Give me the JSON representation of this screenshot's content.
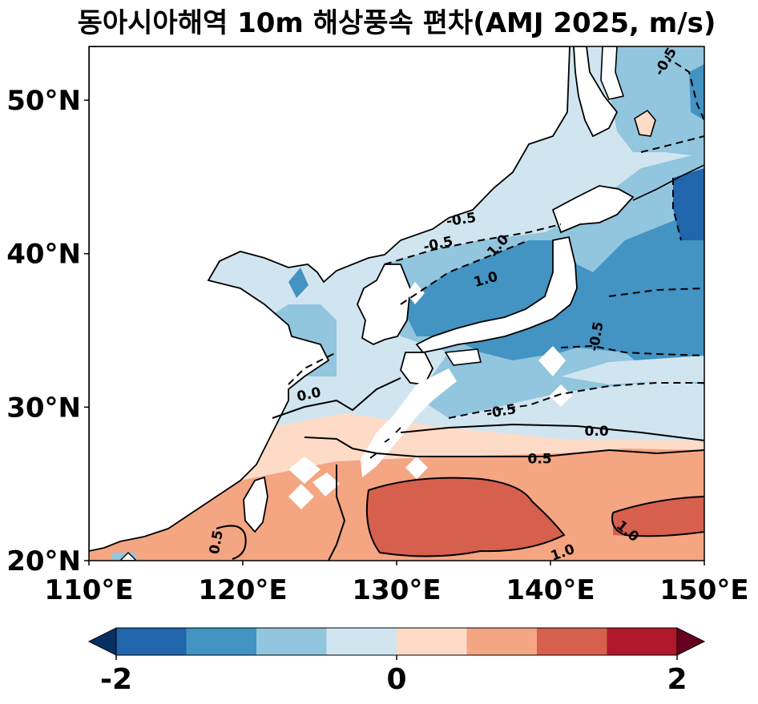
{
  "title": "동아시아해역 10m 해상풍속 편차(AMJ 2025, m/s)",
  "map": {
    "lon_range": [
      110,
      150
    ],
    "lat_range": [
      20,
      53.5
    ],
    "x_ticks": [
      110,
      120,
      130,
      140,
      150
    ],
    "x_tick_labels": [
      "110°E",
      "120°E",
      "130°E",
      "140°E",
      "150°E"
    ],
    "y_ticks": [
      20,
      30,
      40,
      50
    ],
    "y_tick_labels": [
      "20°N",
      "30°N",
      "40°N",
      "50°N"
    ],
    "contour_labels": [
      {
        "text": "-0.5",
        "lon": 147.5,
        "lat": 52.5,
        "angle": -60
      },
      {
        "text": "-0.5",
        "lon": 134.2,
        "lat": 42.2,
        "angle": -8
      },
      {
        "text": "-0.5",
        "lon": 132.7,
        "lat": 40.6,
        "angle": -12
      },
      {
        "text": "1.0",
        "lon": 136.6,
        "lat": 40.5,
        "angle": -48
      },
      {
        "text": "1.0",
        "lon": 135.8,
        "lat": 38.3,
        "angle": -16
      },
      {
        "text": "-0.5",
        "lon": 143.0,
        "lat": 34.6,
        "angle": -80
      },
      {
        "text": "0.0",
        "lon": 124.3,
        "lat": 30.8,
        "angle": -12
      },
      {
        "text": "-0.5",
        "lon": 136.8,
        "lat": 29.7,
        "angle": -10
      },
      {
        "text": "0.0",
        "lon": 143.0,
        "lat": 28.4,
        "angle": 0
      },
      {
        "text": "0.5",
        "lon": 139.3,
        "lat": 26.6,
        "angle": 0
      },
      {
        "text": "0.5",
        "lon": 118.3,
        "lat": 21.2,
        "angle": -80
      },
      {
        "text": "1.0",
        "lon": 145.0,
        "lat": 21.9,
        "angle": 40
      },
      {
        "text": "1.0",
        "lon": 140.8,
        "lat": 20.5,
        "angle": -20
      }
    ]
  },
  "colorbar": {
    "vmin": -2.5,
    "vmax": 2.5,
    "levels": [
      -2.0,
      -1.5,
      -1.0,
      -0.5,
      0.0,
      0.5,
      1.0,
      1.5,
      2.0
    ],
    "colors": [
      "#053061",
      "#2166ac",
      "#4393c3",
      "#92c5de",
      "#d1e5f0",
      "#fddbc7",
      "#f4a582",
      "#d6604d",
      "#b2182b",
      "#67001f"
    ],
    "tick_values": [
      -2,
      0,
      2
    ],
    "tick_labels": [
      "-2",
      "0",
      "2"
    ],
    "extend": "both"
  }
}
